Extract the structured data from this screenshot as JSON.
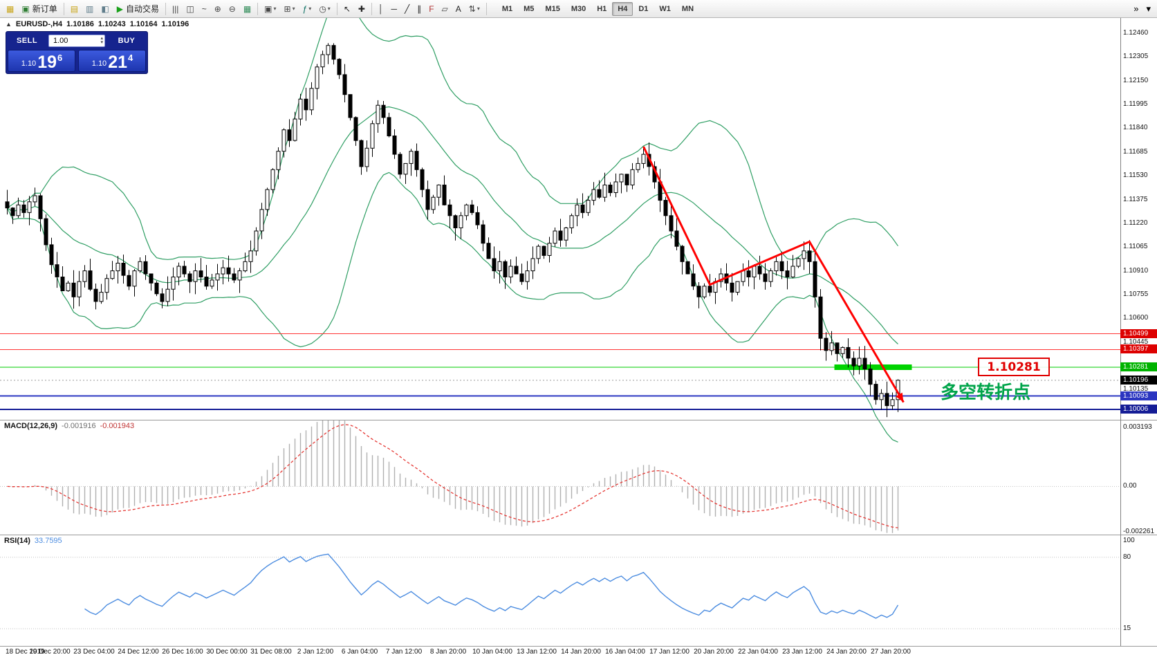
{
  "toolbar": {
    "items": [
      {
        "type": "icon",
        "name": "chart-window-icon",
        "glyph": "▦",
        "color": "#c8a417"
      },
      {
        "type": "button",
        "name": "new-order-button",
        "glyph": "▣",
        "color": "#2e7d32",
        "label": "新订单"
      },
      {
        "type": "sep"
      },
      {
        "type": "icon",
        "name": "market-watch-icon",
        "glyph": "▤",
        "color": "#c8a417"
      },
      {
        "type": "icon",
        "name": "data-window-icon",
        "glyph": "▥",
        "color": "#607d8b"
      },
      {
        "type": "icon",
        "name": "navigator-icon",
        "glyph": "◧",
        "color": "#607d8b"
      },
      {
        "type": "button",
        "name": "autotrading-button",
        "glyph": "▶",
        "color": "#18a018",
        "label": "自动交易"
      },
      {
        "type": "sep"
      },
      {
        "type": "icon",
        "name": "bar-chart-icon",
        "glyph": "|||",
        "color": "#444444"
      },
      {
        "type": "icon",
        "name": "candlestick-chart-icon",
        "glyph": "◫",
        "color": "#444444"
      },
      {
        "type": "icon",
        "name": "line-chart-icon",
        "glyph": "~",
        "color": "#444444"
      },
      {
        "type": "icon",
        "name": "zoom-in-icon",
        "glyph": "⊕",
        "color": "#444444"
      },
      {
        "type": "icon",
        "name": "zoom-out-icon",
        "glyph": "⊖",
        "color": "#444444"
      },
      {
        "type": "icon",
        "name": "tile-windows-icon",
        "glyph": "▦",
        "color": "#2e8b57"
      },
      {
        "type": "sep"
      },
      {
        "type": "icon",
        "name": "new-chart-icon",
        "glyph": "▣",
        "color": "#444444",
        "caret": true
      },
      {
        "type": "icon",
        "name": "profiles-icon",
        "glyph": "⊞",
        "color": "#444444",
        "caret": true
      },
      {
        "type": "icon",
        "name": "indicators-icon",
        "glyph": "ƒ",
        "color": "#00695c",
        "caret": true
      },
      {
        "type": "icon",
        "name": "periods-icon",
        "glyph": "◷",
        "color": "#444444",
        "caret": true
      },
      {
        "type": "sep"
      },
      {
        "type": "icon",
        "name": "cursor-icon",
        "glyph": "↖",
        "color": "#222222"
      },
      {
        "type": "icon",
        "name": "crosshair-icon",
        "glyph": "✚",
        "color": "#222222"
      },
      {
        "type": "sep"
      },
      {
        "type": "icon",
        "name": "vertical-line-icon",
        "glyph": "│",
        "color": "#222222"
      },
      {
        "type": "icon",
        "name": "horizontal-line-icon",
        "glyph": "─",
        "color": "#222222"
      },
      {
        "type": "icon",
        "name": "trendline-icon",
        "glyph": "╱",
        "color": "#222222"
      },
      {
        "type": "icon",
        "name": "equidistant-channel-icon",
        "glyph": "∥",
        "color": "#222222"
      },
      {
        "type": "icon",
        "name": "fibonacci-icon",
        "glyph": "F",
        "color": "#b03030"
      },
      {
        "type": "icon",
        "name": "shapes-icon",
        "glyph": "▱",
        "color": "#444444"
      },
      {
        "type": "icon",
        "name": "text-icon",
        "glyph": "A",
        "color": "#222222"
      },
      {
        "type": "icon",
        "name": "arrows-icon",
        "glyph": "⇅",
        "color": "#444444",
        "caret": true
      },
      {
        "type": "sep"
      }
    ],
    "timeframes": [
      "M1",
      "M5",
      "M15",
      "M30",
      "H1",
      "H4",
      "D1",
      "W1",
      "MN"
    ],
    "active_timeframe": "H4",
    "right_icons": [
      {
        "name": "toolbar-overflow-icon",
        "glyph": "»"
      },
      {
        "name": "toolbar-customize-icon",
        "glyph": "▾"
      }
    ]
  },
  "chart_header": {
    "symbol": "EURUSD-,H4",
    "open": "1.10186",
    "high": "1.10243",
    "low": "1.10164",
    "close": "1.10196"
  },
  "trade_panel": {
    "sell_label": "SELL",
    "buy_label": "BUY",
    "volume": "1.00",
    "sell_price_small": "1.10",
    "sell_price_big": "19",
    "sell_price_sup": "6",
    "buy_price_small": "1.10",
    "buy_price_big": "21",
    "buy_price_sup": "4"
  },
  "annotations": {
    "price_callout": "1.10281",
    "turning_point_label": "多空转折点"
  },
  "chart_data": {
    "type": "candlestick",
    "symbol": "EURUSD",
    "period": "H4",
    "candles": {
      "first_open": 1.1136,
      "closes": [
        1.1132,
        1.1127,
        1.1134,
        1.1129,
        1.1136,
        1.114,
        1.1125,
        1.1108,
        1.1095,
        1.1087,
        1.1078,
        1.1083,
        1.1074,
        1.1084,
        1.1091,
        1.1079,
        1.1071,
        1.1077,
        1.1086,
        1.1091,
        1.1096,
        1.1088,
        1.1081,
        1.1091,
        1.1097,
        1.1089,
        1.1083,
        1.1076,
        1.1071,
        1.1079,
        1.1087,
        1.1094,
        1.1089,
        1.1084,
        1.1091,
        1.1087,
        1.1081,
        1.1085,
        1.1089,
        1.1093,
        1.1089,
        1.1085,
        1.1091,
        1.1097,
        1.1104,
        1.1117,
        1.1131,
        1.1144,
        1.1157,
        1.1169,
        1.1183,
        1.1176,
        1.119,
        1.1203,
        1.1196,
        1.121,
        1.1224,
        1.1232,
        1.1238,
        1.1229,
        1.1219,
        1.1206,
        1.1191,
        1.1176,
        1.1159,
        1.1171,
        1.1187,
        1.1199,
        1.1191,
        1.1179,
        1.1167,
        1.1154,
        1.1161,
        1.1169,
        1.1157,
        1.1144,
        1.1131,
        1.1139,
        1.1147,
        1.1134,
        1.1127,
        1.1119,
        1.1127,
        1.1134,
        1.1129,
        1.1121,
        1.1109,
        1.1099,
        1.1091,
        1.1097,
        1.1087,
        1.1094,
        1.1089,
        1.1084,
        1.1091,
        1.1099,
        1.1107,
        1.1101,
        1.1109,
        1.1117,
        1.1111,
        1.1119,
        1.1127,
        1.1134,
        1.1129,
        1.1137,
        1.1144,
        1.1139,
        1.1147,
        1.1142,
        1.1149,
        1.1154,
        1.1147,
        1.1157,
        1.1161,
        1.1167,
        1.1159,
        1.1149,
        1.1137,
        1.1127,
        1.1117,
        1.1107,
        1.1097,
        1.1089,
        1.1081,
        1.1074,
        1.1081,
        1.1077,
        1.1084,
        1.1089,
        1.1083,
        1.1077,
        1.1084,
        1.1091,
        1.1087,
        1.1094,
        1.1089,
        1.1084,
        1.1091,
        1.1097,
        1.1091,
        1.1087,
        1.1094,
        1.1099,
        1.1104,
        1.1097,
        1.1074,
        1.1047,
        1.1039,
        1.1044,
        1.1037,
        1.1041,
        1.1034,
        1.1029,
        1.1034,
        1.1027,
        1.1017,
        1.1007,
        1.1011,
        1.1003,
        1.1007,
        1.10196
      ],
      "bull_fill": "#ffffff",
      "bear_fill": "#000000",
      "border": "#000000"
    },
    "bollinger": {
      "period": 20,
      "deviation": 2,
      "color": "#2e9e63"
    },
    "hlines": [
      {
        "price": 1.10499,
        "label": "1.10499",
        "color": "#ff3333",
        "tag": "#dd0000",
        "width": 1
      },
      {
        "price": 1.10397,
        "label": "1.10397",
        "color": "#ff3333",
        "tag": "#dd0000",
        "width": 1
      },
      {
        "price": 1.10281,
        "label": "1.10281",
        "color": "#00cc00",
        "tag": "#00b300",
        "width": 1
      },
      {
        "price": 1.10093,
        "label": "1.10093",
        "color": "#2a35c0",
        "tag": "#2a35c0",
        "width": 2
      },
      {
        "price": 1.10006,
        "label": "1.10006",
        "color": "#151d96",
        "tag": "#151d96",
        "width": 2
      }
    ],
    "green_zone": {
      "from_index": 150,
      "to_index": 163,
      "price": 1.10281,
      "color": "#00d300",
      "thickness": 8
    },
    "trendline": {
      "color": "#ff0000",
      "width": 3,
      "points": [
        [
          115,
          1.1172
        ],
        [
          127,
          1.1082
        ],
        [
          145,
          1.111
        ],
        [
          162,
          1.10053
        ]
      ]
    },
    "current_price": {
      "value": 1.10196,
      "label": "1.10196",
      "tag": "#000000"
    },
    "price_axis": {
      "ticks": [
        "1.12460",
        "1.12305",
        "1.12150",
        "1.11995",
        "1.11840",
        "1.11685",
        "1.11530",
        "1.11375",
        "1.11220",
        "1.11065",
        "1.10910",
        "1.10755",
        "1.10600",
        "1.10445",
        "1.10290",
        "1.10135"
      ]
    },
    "macd": {
      "label": "MACD(12,26,9)",
      "value_main": "-0.001916",
      "value_signal": "-0.001943",
      "params": [
        12,
        26,
        9
      ],
      "axis_labels": [
        "0.003193",
        "0.00",
        "-0.002261"
      ],
      "axis_max": 0.003193,
      "axis_min": -0.002261,
      "histogram_color": "#b0b0b0",
      "signal_color": "#e53935"
    },
    "rsi": {
      "label": "RSI(14)",
      "value": "33.7595",
      "period": 14,
      "axis_labels": [
        "100",
        "80",
        "15"
      ],
      "levels": [
        80,
        15
      ],
      "color": "#4b8ce0",
      "range": [
        0,
        100
      ]
    },
    "time_labels": [
      "18 Dec 2019",
      "19 Dec 20:00",
      "23 Dec 04:00",
      "24 Dec 12:00",
      "26 Dec 16:00",
      "30 Dec 00:00",
      "31 Dec 08:00",
      "2 Jan 12:00",
      "6 Jan 04:00",
      "7 Jan 12:00",
      "8 Jan 20:00",
      "10 Jan 04:00",
      "13 Jan 12:00",
      "14 Jan 20:00",
      "16 Jan 04:00",
      "17 Jan 12:00",
      "20 Jan 20:00",
      "22 Jan 04:00",
      "23 Jan 12:00",
      "24 Jan 20:00",
      "27 Jan 20:00"
    ]
  }
}
